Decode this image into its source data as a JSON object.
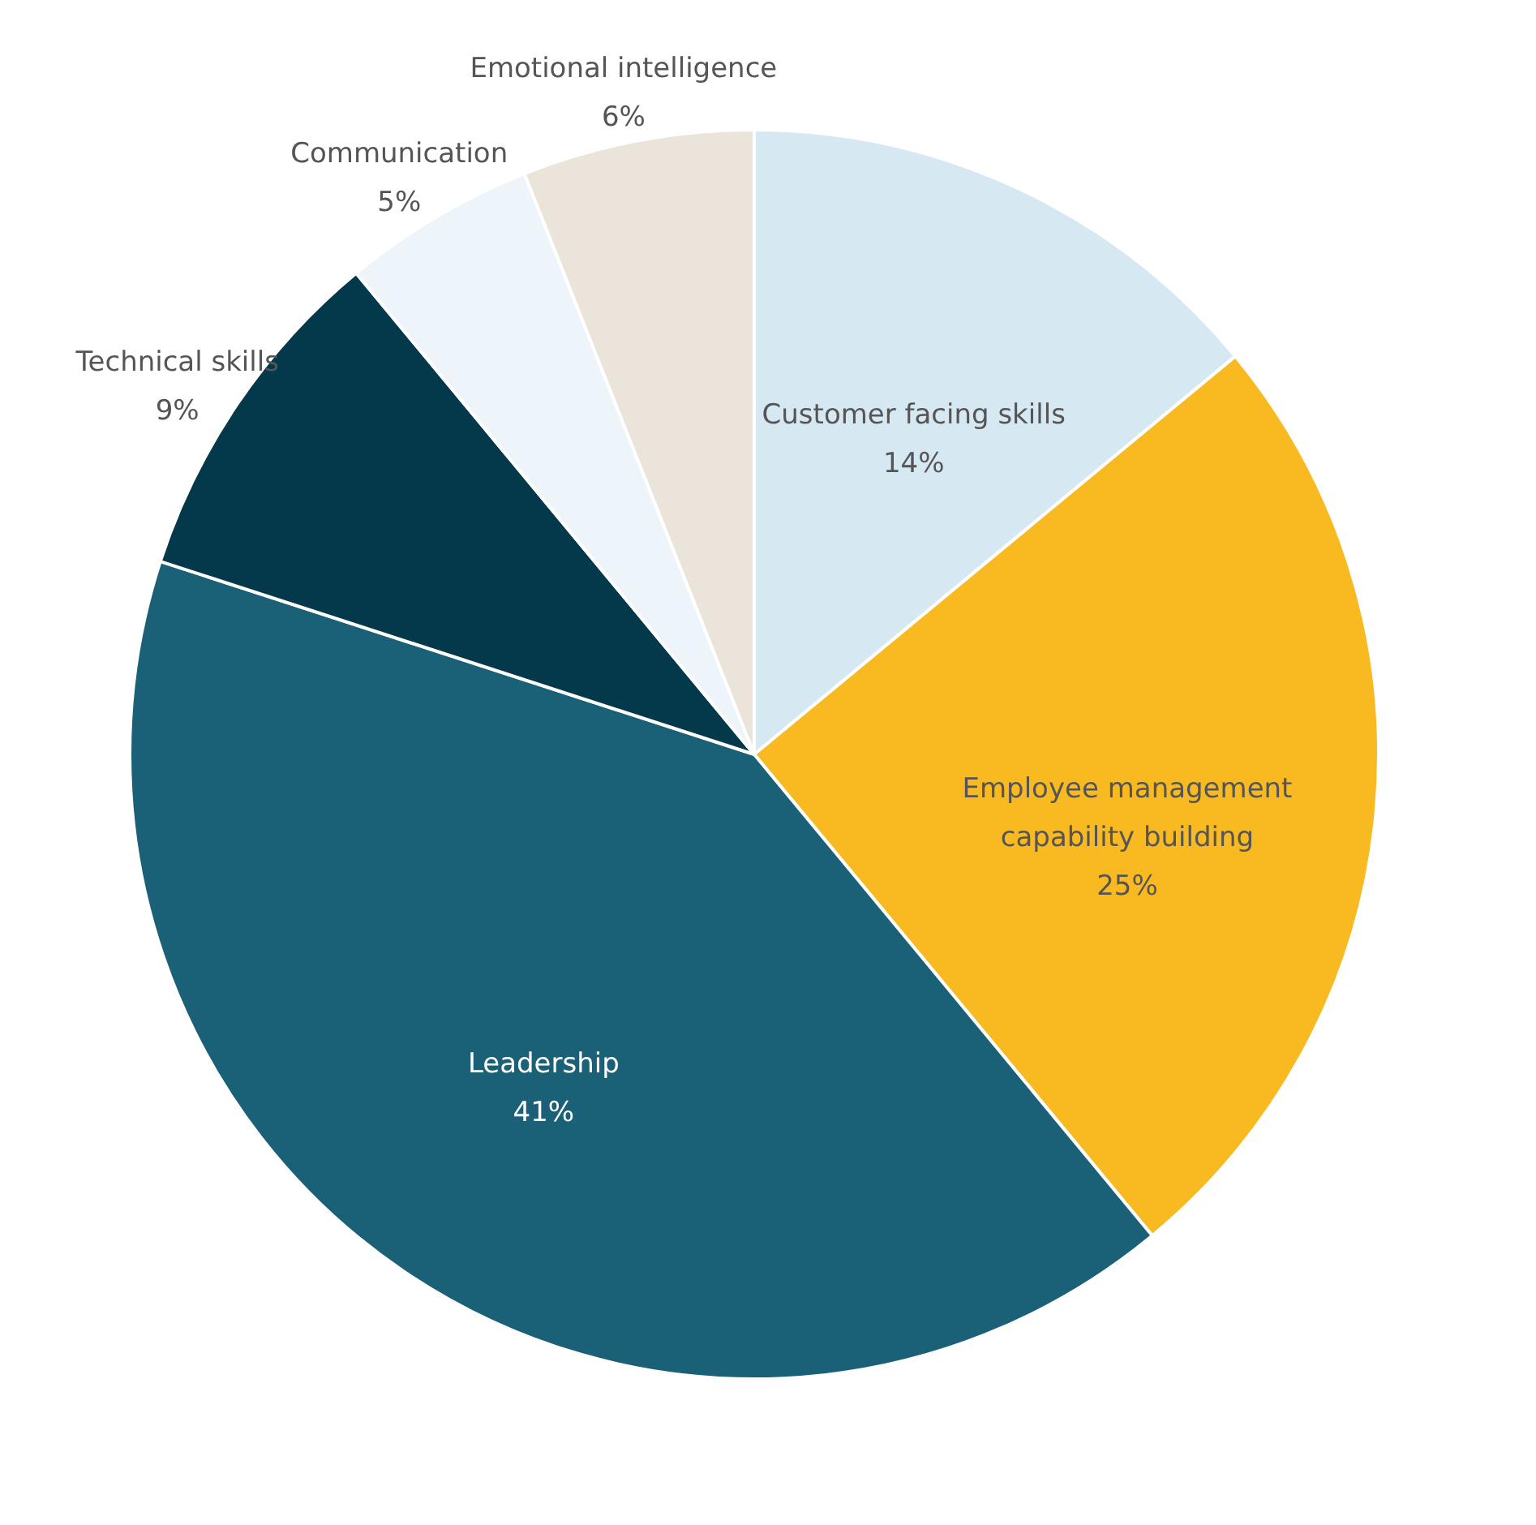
{
  "chart_data": {
    "type": "pie",
    "categories": [
      "Customer facing skills",
      "Employee management capability building",
      "Leadership",
      "Technical skills",
      "Communication",
      "Emotional intelligence"
    ],
    "values": [
      14,
      25,
      41,
      9,
      5,
      6
    ],
    "colors": [
      "#d6e9f3",
      "#f9b921",
      "#1a6077",
      "#03394b",
      "#eef5fa",
      "#ebe4da"
    ],
    "value_labels": [
      "14%",
      "25%",
      "41%",
      "9%",
      "5%",
      "6%"
    ],
    "legend": false
  }
}
